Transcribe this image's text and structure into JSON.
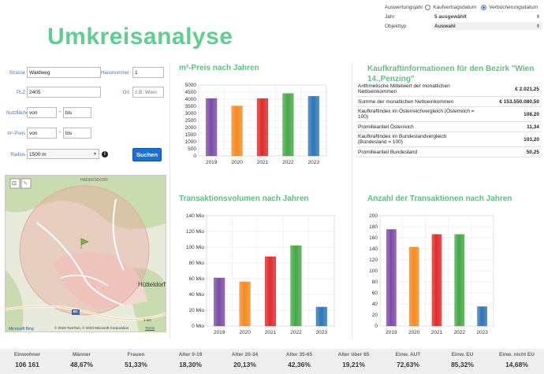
{
  "top": {
    "auswertungsjahr_label": "Auswertungsjahr",
    "opt1": "Kaufvertragsdatum",
    "opt2": "Verbücherungsdatum",
    "jahr_label": "Jahr",
    "jahr_value": "5 ausgewählt",
    "objekttyp_label": "Objekttyp",
    "objekttyp_value": "Auswahl"
  },
  "page_title": "Umkreisanalyse",
  "form": {
    "strasse_label": "Strasse",
    "strasse_value": "Waldweg",
    "hausnummer_label": "Hausnummer",
    "hausnummer_value": "1",
    "plz_label": "PLZ",
    "plz_value": "2405",
    "ort_label": "Ort",
    "ort_placeholder": "z.B. Wien",
    "nutzflaeche_label": "Nutzfläche",
    "von": "von",
    "bis": "bis",
    "qmpreis_label": "m²-Preis",
    "radius_label": "Radius",
    "radius_value": "1500 m",
    "search_label": "Suchen"
  },
  "map": {
    "place1": "HADERSDORF",
    "place2": "Hütteldorf",
    "road": "B1",
    "scale": "1 km",
    "copyright": "© 2023 TomTom, © 2023 Microsoft Corporation",
    "terms": "Terms",
    "brand": "Microsoft Bing"
  },
  "sections": {
    "qm_title": "m²-Preis nach Jahren",
    "kk_title": "Kaufkraftinformationen für den Bezirk \"Wien 14.,Penzing\"",
    "tv_title": "Transaktionsvolumen nach Jahren",
    "at_title": "Anzahl der Transaktionen nach Jahren"
  },
  "kaufkraft": [
    {
      "label": "Arithmelische Mittelwert der monatlichen Nettoeinkommen",
      "value": "€ 2.021,25"
    },
    {
      "label": "Summe der monatlichen Nettoeinkommen",
      "value": "€ 153.550.080,50"
    },
    {
      "label": "Kaufkraftindex im Österreichvergleich (Österreich = 100)",
      "value": "108,20"
    },
    {
      "label": "Promilleanteil Österreich",
      "value": "11,34"
    },
    {
      "label": "Kaufkraftindex im Bundeslandvergleich (Bundesland = 100)",
      "value": "103,20"
    },
    {
      "label": "Promilleanteil Bundesland",
      "value": "50,25"
    }
  ],
  "colors": {
    "purple": "#7b4aa6",
    "orange": "#f58a1f",
    "red": "#e02a2a",
    "green": "#45a845",
    "blue": "#2c76b8",
    "accent": "#5fcf8f"
  },
  "chart_data": [
    {
      "type": "bar",
      "title": "m²-Preis nach Jahren",
      "categories": [
        "2019",
        "2020",
        "2021",
        "2022",
        "2023"
      ],
      "values": [
        4050,
        3520,
        4040,
        4400,
        4200
      ],
      "ylim": [
        0,
        5000
      ],
      "yticks": [
        "0",
        "500",
        "1000",
        "1500",
        "2000",
        "2500",
        "3000",
        "3500",
        "4000",
        "4500",
        "5000"
      ],
      "grid": true
    },
    {
      "type": "bar",
      "title": "Transaktionsvolumen nach Jahren",
      "categories": [
        "2019",
        "2020",
        "2021",
        "2022",
        "2023"
      ],
      "values": [
        61,
        56,
        88,
        102,
        24
      ],
      "ylim": [
        0,
        140
      ],
      "yticks": [
        "0 Mio",
        "20 Mio",
        "40 Mio",
        "60 Mio",
        "80 Mio",
        "100 Mio",
        "120 Mio",
        "140 Mio"
      ],
      "grid": true
    },
    {
      "type": "bar",
      "title": "Anzahl der Transaktionen nach Jahren",
      "categories": [
        "2019",
        "2020",
        "2021",
        "2022",
        "2023"
      ],
      "values": [
        175,
        143,
        166,
        166,
        35
      ],
      "ylim": [
        0,
        200
      ],
      "yticks": [
        "0",
        "20",
        "40",
        "60",
        "80",
        "100",
        "120",
        "140",
        "160",
        "180",
        "200"
      ],
      "grid": true
    }
  ],
  "stats": [
    {
      "h": "Einwohner",
      "n": "106 161"
    },
    {
      "h": "Männer",
      "n": "48,67%"
    },
    {
      "h": "Frauen",
      "n": "51,33%"
    },
    {
      "h": "Alter 0-19",
      "n": "18,30%"
    },
    {
      "h": "Alter 20-34",
      "n": "20,13%"
    },
    {
      "h": "Alter 35-65",
      "n": "42,36%"
    },
    {
      "h": "Alter über 65",
      "n": "19,21%"
    },
    {
      "h": "Einw. AUT",
      "n": "72,63%"
    },
    {
      "h": "Einw. EU",
      "n": "85,32%"
    },
    {
      "h": "Einw. nicht EU",
      "n": "14,68%"
    }
  ]
}
